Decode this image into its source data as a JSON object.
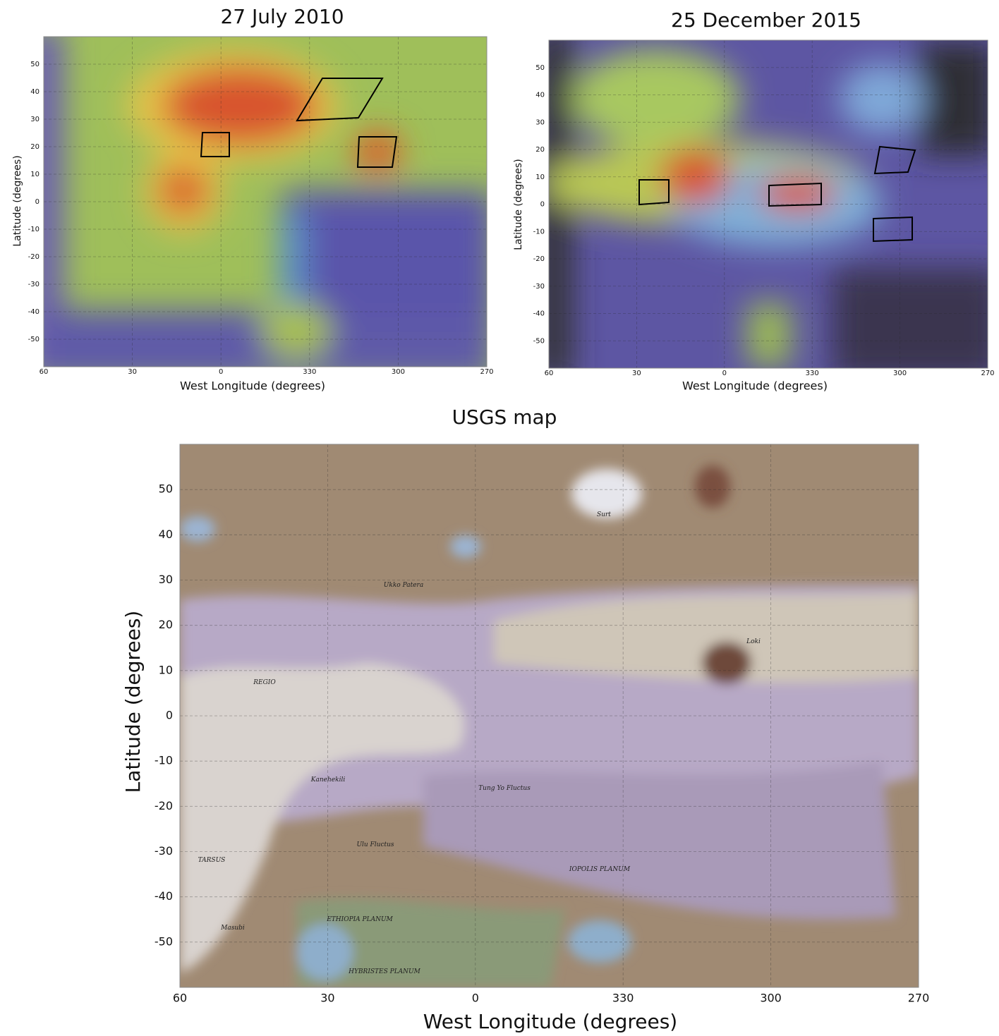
{
  "panels": [
    {
      "title": "27 July 2010",
      "x_label": "West Longitude (degrees)",
      "y_label": "Latitude (degrees)",
      "xticks": [
        60,
        30,
        0,
        330,
        300,
        270
      ],
      "yticks": [
        50,
        40,
        30,
        20,
        10,
        0,
        -10,
        -20,
        -30,
        -40,
        -50
      ]
    },
    {
      "title": "25 December 2015",
      "x_label": "West Longitude (degrees)",
      "y_label": "Latitude (degrees)",
      "xticks": [
        60,
        30,
        0,
        330,
        300,
        270
      ],
      "yticks": [
        50,
        40,
        30,
        20,
        10,
        0,
        -10,
        -20,
        -30,
        -40,
        -50
      ]
    },
    {
      "title": "USGS map",
      "x_label": "West Longitude (degrees)",
      "y_label": "Latitude (degrees)",
      "xticks": [
        60,
        30,
        0,
        330,
        300,
        270
      ],
      "yticks": [
        50,
        40,
        30,
        20,
        10,
        0,
        -10,
        -20,
        -30,
        -40,
        -50
      ],
      "map_labels": [
        "REGIO",
        "TARSUS",
        "Masubi",
        "ETHIOPIA PLANUM",
        "HYBRISTES PLANUM",
        "IOPOLIS PLANUM",
        "Tung Yo Fluctus",
        "Ulu Fluctus",
        "Loki",
        "Surt",
        "Kanehekili",
        "Ukko Patera"
      ]
    }
  ]
}
